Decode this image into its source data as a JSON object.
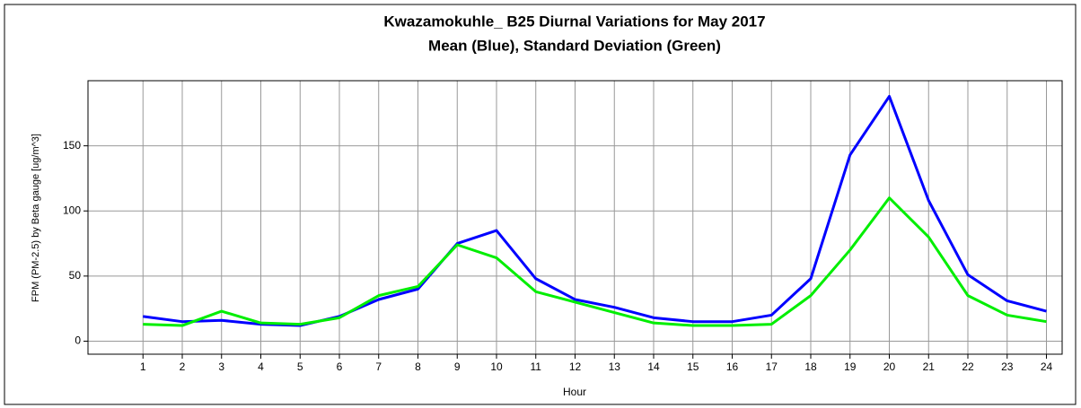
{
  "chart_data": {
    "type": "line",
    "title": "Kwazamokuhle_ B25 Diurnal Variations for May 2017",
    "subtitle": "Mean (Blue), Standard Deviation (Green)",
    "x_label": "Hour",
    "y_label": "FPM (PM-2.5) by Beta gauge  [ug/m^3]",
    "x": [
      1,
      2,
      3,
      4,
      5,
      6,
      7,
      8,
      9,
      10,
      11,
      12,
      13,
      14,
      15,
      16,
      17,
      18,
      19,
      20,
      21,
      22,
      23,
      24
    ],
    "series": [
      {
        "name": "Mean",
        "color": "#0000ff",
        "values": [
          19,
          15,
          16,
          13,
          12,
          19,
          32,
          40,
          75,
          85,
          48,
          32,
          26,
          18,
          15,
          15,
          20,
          48,
          143,
          188,
          108,
          51,
          31,
          23
        ]
      },
      {
        "name": "Standard Deviation",
        "color": "#00ee00",
        "values": [
          13,
          12,
          23,
          14,
          13,
          18,
          35,
          42,
          74,
          64,
          38,
          30,
          22,
          14,
          12,
          12,
          13,
          35,
          70,
          110,
          80,
          35,
          20,
          15
        ]
      }
    ],
    "xlim": [
      -0.4,
      24.4
    ],
    "xticks": [
      1,
      2,
      3,
      4,
      5,
      6,
      7,
      8,
      9,
      10,
      11,
      12,
      13,
      14,
      15,
      16,
      17,
      18,
      19,
      20,
      21,
      22,
      23,
      24
    ],
    "ylim": [
      -10,
      200
    ],
    "yticks": [
      0,
      50,
      100,
      150
    ],
    "grid": true
  }
}
